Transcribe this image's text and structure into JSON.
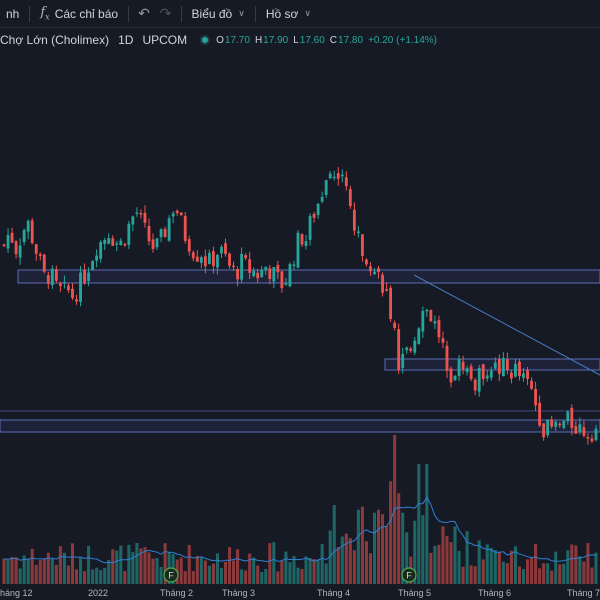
{
  "toolbar": {
    "cut_label": "nh",
    "indicators_icon": "fx-icon",
    "indicators_label": "Các chỉ báo",
    "undo_icon": "undo-icon",
    "redo_icon": "redo-icon",
    "chart_type_label": "Biểu đồ",
    "profile_label": "Hồ sơ"
  },
  "legend": {
    "symbol": "Chợ Lớn (Cholimex)",
    "interval": "1D",
    "exchange": "UPCOM",
    "open_label": "O",
    "open": "17.70",
    "high_label": "H",
    "high": "17.90",
    "low_label": "L",
    "low": "17.60",
    "close_label": "C",
    "close": "17.80",
    "change": "+0.20 (+1.14%)"
  },
  "colors": {
    "background": "#161a25",
    "up": "#26a69a",
    "down": "#ef5350",
    "volume_ma": "#2f7fd6",
    "zone": "#5a6cb8"
  },
  "time_axis": [
    "háng 12",
    "2022",
    "Tháng 2",
    "Tháng 3",
    "Tháng 4",
    "Tháng 5",
    "Tháng 6",
    "Tháng 7"
  ],
  "event_markers": [
    {
      "letter": "F"
    },
    {
      "letter": "F"
    }
  ],
  "chart_data": {
    "type": "candlestick",
    "x_axis_labels": [
      "háng 12",
      "2022",
      "Tháng 2",
      "Tháng 3",
      "Tháng 4",
      "Tháng 5",
      "Tháng 6",
      "Tháng 7"
    ],
    "series": [
      {
        "values": [
          0.0,
          0.15,
          -0.05,
          0.1,
          0.25,
          0.05,
          -0.15,
          -0.35,
          -0.3,
          -0.45,
          -0.5,
          -0.48,
          -0.55,
          -0.42,
          -0.3,
          -0.15,
          0.0,
          0.05,
          0.15,
          0.05,
          0.0,
          0.12,
          0.28,
          0.35,
          0.18,
          0.05,
          -0.05,
          0.05,
          0.18,
          0.4,
          0.35,
          0.12,
          0.02,
          -0.1,
          -0.08,
          -0.2,
          -0.15,
          -0.05,
          -0.12,
          -0.25,
          -0.3,
          -0.18,
          -0.25,
          -0.28,
          -0.32,
          -0.22,
          -0.28,
          -0.35,
          -0.42,
          -0.3,
          -0.1,
          0.1,
          0.05,
          0.28,
          0.42,
          0.6,
          0.78,
          0.7,
          0.85,
          0.55,
          0.3,
          0.05,
          -0.05,
          -0.15,
          -0.3,
          -0.35,
          -0.55,
          -0.85,
          -1.25,
          -1.2,
          -1.05,
          -0.9,
          -0.7,
          -0.68,
          -0.8,
          -0.95,
          -1.15,
          -1.35,
          -1.3,
          -1.22,
          -1.35,
          -1.48,
          -1.38,
          -1.3,
          -1.25,
          -1.32,
          -1.28,
          -1.35,
          -1.3,
          -1.4,
          -1.45,
          -1.55,
          -1.75,
          -1.92,
          -1.95,
          -1.92,
          -1.9,
          -1.85,
          -1.88,
          -1.92,
          -1.95,
          -1.97,
          -1.93
        ]
      }
    ]
  }
}
